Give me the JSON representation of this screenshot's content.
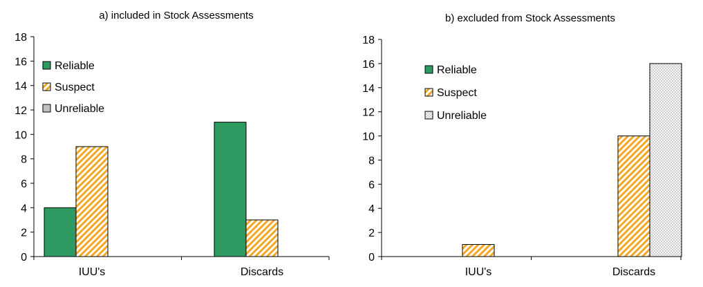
{
  "chart_data": [
    {
      "type": "bar",
      "title": "a) included in Stock Assessments",
      "categories": [
        "IUU's",
        "Discards"
      ],
      "ylim": [
        0,
        18
      ],
      "yticks": [
        0,
        2,
        4,
        6,
        8,
        10,
        12,
        14,
        16,
        18
      ],
      "grid": false,
      "legend": "top-left",
      "series": [
        {
          "name": "Reliable",
          "values": [
            4,
            11
          ],
          "color": "#2e9960",
          "pattern": "solid"
        },
        {
          "name": "Suspect",
          "values": [
            9,
            3
          ],
          "color": "#f5a623",
          "pattern": "diagonal-stripes"
        },
        {
          "name": "Unreliable",
          "values": [
            0,
            0
          ],
          "color": "#c0c0c0",
          "pattern": "solid"
        }
      ]
    },
    {
      "type": "bar",
      "title": "b) excluded from Stock Assessments",
      "categories": [
        "IUU's",
        "Discards"
      ],
      "ylim": [
        0,
        18
      ],
      "yticks": [
        0,
        2,
        4,
        6,
        8,
        10,
        12,
        14,
        16,
        18
      ],
      "grid": false,
      "legend": "top-left",
      "series": [
        {
          "name": "Reliable",
          "values": [
            0,
            0
          ],
          "color": "#2e9960",
          "pattern": "solid"
        },
        {
          "name": "Suspect",
          "values": [
            1,
            10
          ],
          "color": "#f5a623",
          "pattern": "diagonal-stripes"
        },
        {
          "name": "Unreliable",
          "values": [
            0,
            16
          ],
          "color": "#eeeeee",
          "pattern": "dots"
        }
      ]
    }
  ]
}
